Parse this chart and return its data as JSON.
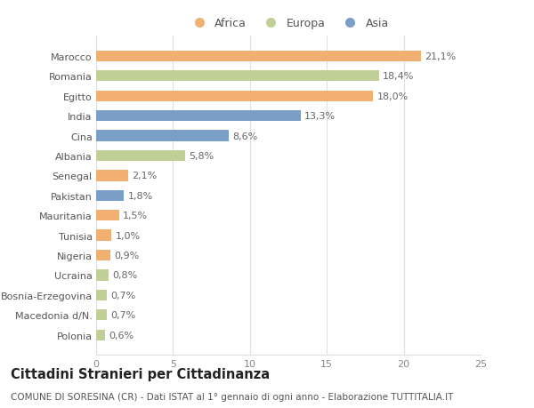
{
  "categories": [
    "Marocco",
    "Romania",
    "Egitto",
    "India",
    "Cina",
    "Albania",
    "Senegal",
    "Pakistan",
    "Mauritania",
    "Tunisia",
    "Nigeria",
    "Ucraina",
    "Bosnia-Erzegovina",
    "Macedonia d/N.",
    "Polonia"
  ],
  "values": [
    21.1,
    18.4,
    18.0,
    13.3,
    8.6,
    5.8,
    2.1,
    1.8,
    1.5,
    1.0,
    0.9,
    0.8,
    0.7,
    0.7,
    0.6
  ],
  "labels": [
    "21,1%",
    "18,4%",
    "18,0%",
    "13,3%",
    "8,6%",
    "5,8%",
    "2,1%",
    "1,8%",
    "1,5%",
    "1,0%",
    "0,9%",
    "0,8%",
    "0,7%",
    "0,7%",
    "0,6%"
  ],
  "continent": [
    "Africa",
    "Europa",
    "Africa",
    "Asia",
    "Asia",
    "Europa",
    "Africa",
    "Asia",
    "Africa",
    "Africa",
    "Africa",
    "Europa",
    "Europa",
    "Europa",
    "Europa"
  ],
  "colors": {
    "Africa": "#F2AF72",
    "Europa": "#BFCF96",
    "Asia": "#7A9EC5"
  },
  "legend_labels": [
    "Africa",
    "Europa",
    "Asia"
  ],
  "xlim": [
    0,
    25
  ],
  "xticks": [
    0,
    5,
    10,
    15,
    20,
    25
  ],
  "title": "Cittadini Stranieri per Cittadinanza",
  "subtitle": "COMUNE DI SORESINA (CR) - Dati ISTAT al 1° gennaio di ogni anno - Elaborazione TUTTITALIA.IT",
  "bg_color": "#ffffff",
  "grid_color": "#e0e0e0",
  "bar_height": 0.55,
  "label_fontsize": 8,
  "tick_fontsize": 8,
  "title_fontsize": 10.5,
  "subtitle_fontsize": 7.5
}
